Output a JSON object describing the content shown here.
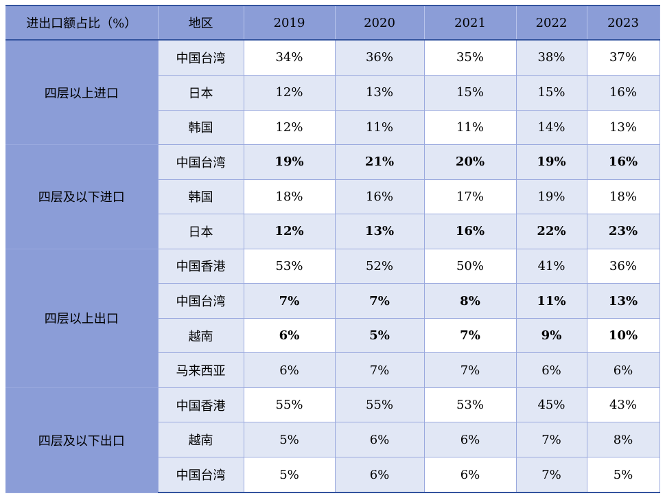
{
  "table": {
    "header": {
      "col_title": "进出口额占比（%）",
      "region_label": "地区",
      "years": [
        "2019",
        "2020",
        "2021",
        "2022",
        "2023"
      ]
    },
    "groups": [
      {
        "label": "四层以上进口",
        "rows": [
          {
            "region": "中国台湾",
            "bold": false,
            "values": [
              "34%",
              "36%",
              "35%",
              "38%",
              "37%"
            ]
          },
          {
            "region": "日本",
            "bold": false,
            "values": [
              "12%",
              "13%",
              "15%",
              "15%",
              "16%"
            ]
          },
          {
            "region": "韩国",
            "bold": false,
            "values": [
              "12%",
              "11%",
              "11%",
              "14%",
              "13%"
            ]
          }
        ]
      },
      {
        "label": "四层及以下进口",
        "rows": [
          {
            "region": "中国台湾",
            "bold": true,
            "values": [
              "19%",
              "21%",
              "20%",
              "19%",
              "16%"
            ]
          },
          {
            "region": "韩国",
            "bold": false,
            "values": [
              "18%",
              "16%",
              "17%",
              "19%",
              "18%"
            ]
          },
          {
            "region": "日本",
            "bold": true,
            "values": [
              "12%",
              "13%",
              "16%",
              "22%",
              "23%"
            ]
          }
        ]
      },
      {
        "label": "四层以上出口",
        "rows": [
          {
            "region": "中国香港",
            "bold": false,
            "values": [
              "53%",
              "52%",
              "50%",
              "41%",
              "36%"
            ]
          },
          {
            "region": "中国台湾",
            "bold": true,
            "values": [
              "7%",
              "7%",
              "8%",
              "11%",
              "13%"
            ]
          },
          {
            "region": "越南",
            "bold": true,
            "values": [
              "6%",
              "5%",
              "7%",
              "9%",
              "10%"
            ]
          },
          {
            "region": "马来西亚",
            "bold": false,
            "values": [
              "6%",
              "7%",
              "7%",
              "6%",
              "6%"
            ]
          }
        ]
      },
      {
        "label": "四层及以下出口",
        "rows": [
          {
            "region": "中国香港",
            "bold": false,
            "values": [
              "55%",
              "55%",
              "53%",
              "45%",
              "43%"
            ]
          },
          {
            "region": "越南",
            "bold": false,
            "values": [
              "5%",
              "6%",
              "6%",
              "7%",
              "8%"
            ]
          },
          {
            "region": "中国台湾",
            "bold": false,
            "values": [
              "5%",
              "6%",
              "6%",
              "7%",
              "5%"
            ]
          }
        ]
      }
    ],
    "colors": {
      "header_bg": "#8B9DD7",
      "stripe_bg": "#E1E7F5",
      "white_bg": "#FFFFFF",
      "grid_line": "#9AA9DE",
      "header_line": "#B7C3EB",
      "outer_border": "#33539E",
      "text": "#000000"
    }
  }
}
